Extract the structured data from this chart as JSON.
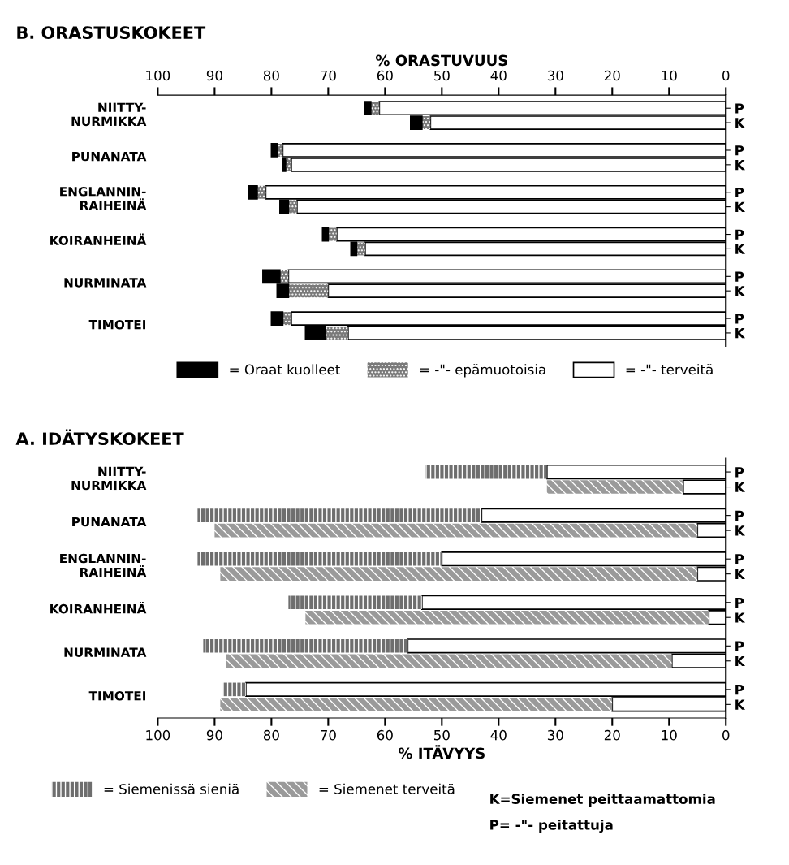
{
  "chart_data": [
    {
      "type": "bar",
      "orientation": "horizontal",
      "stacked": true,
      "title": "B. ORASTUSKOKEET",
      "xlabel": "% ORASTUVUUS",
      "categories": [
        "P",
        "K",
        "P",
        "K",
        "P",
        "K",
        "P",
        "K",
        "P",
        "K",
        "P",
        "K"
      ],
      "series": [
        {
          "name": "= -\"- terveitä",
          "color": "#ffffff",
          "values": [
            61,
            52,
            78,
            76.5,
            81,
            75.5,
            68.5,
            63.5,
            77,
            70,
            76.5,
            66.5
          ]
        },
        {
          "name": "= -\"- epämuotoisia",
          "color": "#7a7a7a",
          "values": [
            1.5,
            1.5,
            1,
            1,
            1.5,
            1.5,
            1.5,
            1.5,
            1.5,
            7,
            1.5,
            4
          ]
        },
        {
          "name": "= Oraat kuolleet",
          "color": "#000000",
          "values": [
            1,
            2,
            1,
            0.5,
            1.5,
            1.5,
            1,
            1,
            3,
            2,
            2,
            3.5
          ]
        }
      ],
      "xlim": [
        100,
        0
      ],
      "xticks": [
        0,
        10,
        20,
        30,
        40,
        50,
        60,
        70,
        80,
        90,
        100
      ],
      "grid": false,
      "legend": "bottom right",
      "annotations": [
        "NIITTY-\nNURMIKKA",
        "PUNANATA",
        "ENGLANNIN-\nRAIHEINÄ",
        "KOIRANHEINÄ",
        "NURMINATA",
        "TIMOTEI"
      ]
    },
    {
      "type": "bar",
      "orientation": "horizontal",
      "stacked": true,
      "title": "A. IDÄTYSKOKEET",
      "xlabel": "% ITÄVYYS",
      "categories": [
        "P",
        "K",
        "P",
        "K",
        "P",
        "K",
        "P",
        "K",
        "P",
        "K",
        "P",
        "K"
      ],
      "series": [
        {
          "color": "#ffffff",
          "values": [
            31.5,
            7.5,
            43,
            5,
            50,
            5,
            53.5,
            3,
            56,
            9.5,
            84.5,
            20
          ]
        },
        {
          "name": "= Siemenet terveitä",
          "color": "#9a9a9a",
          "values": [
            null,
            24,
            null,
            85,
            null,
            84,
            null,
            71,
            null,
            78.5,
            null,
            69
          ]
        },
        {
          "name": "= Siemenissä sieniä",
          "color": "#6e6e6e",
          "values": [
            21.5,
            null,
            50,
            null,
            43,
            null,
            23.5,
            null,
            36,
            null,
            4,
            null
          ]
        }
      ],
      "xlim": [
        100,
        0
      ],
      "xticks": [
        0,
        10,
        20,
        30,
        40,
        50,
        60,
        70,
        80,
        90,
        100
      ],
      "grid": false,
      "legend": "bottom left",
      "annotations": [
        "NIITTY-\nNURMIKKA",
        "PUNANATA",
        "ENGLANNIN-\nRAIHEINÄ",
        "KOIRANHEINÄ",
        "NURMINATA",
        "TIMOTEI",
        "K=Siemenet peittaamattomia",
        "P= -\"- peitattuja"
      ]
    }
  ]
}
